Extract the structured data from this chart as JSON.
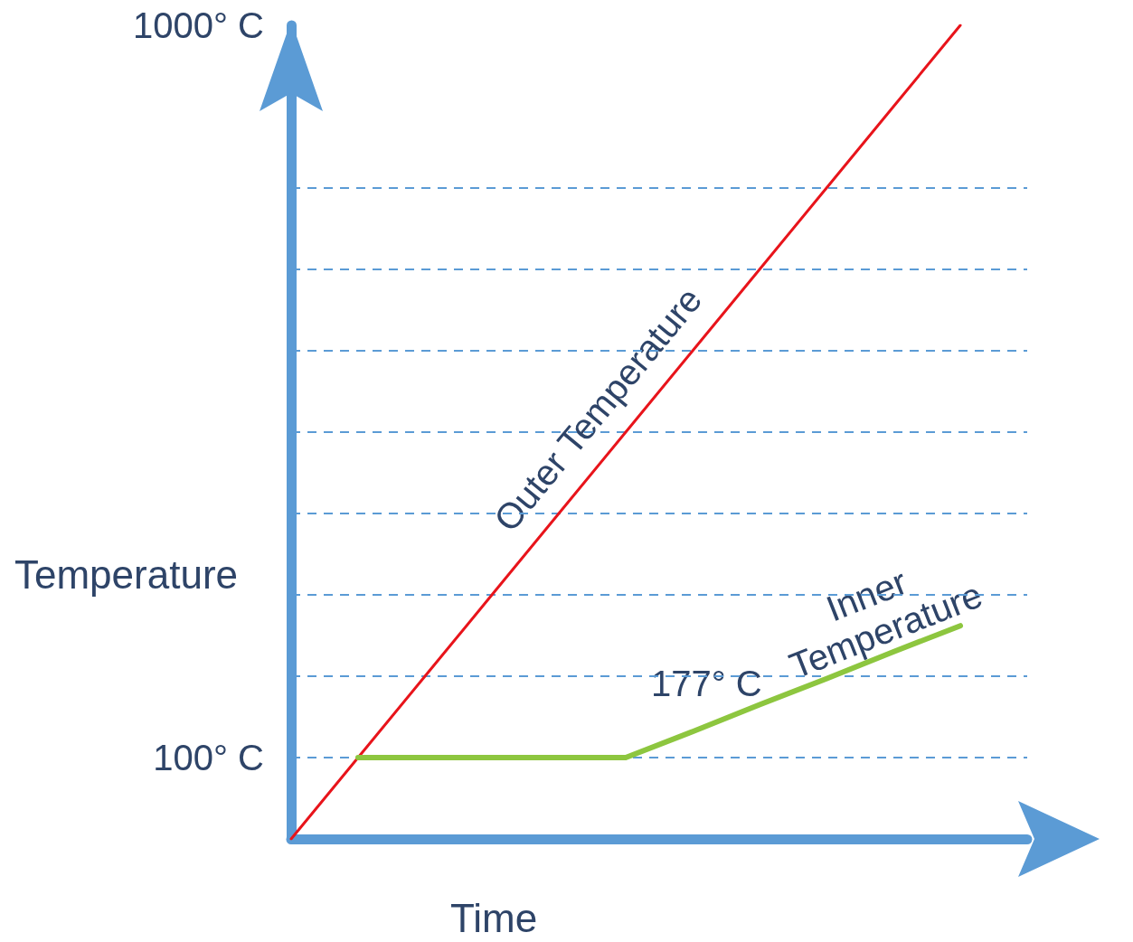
{
  "chart_data": {
    "type": "line",
    "xlabel": "Time",
    "ylabel": "Temperature",
    "categories": [
      null,
      null,
      null,
      null,
      null,
      null,
      null,
      null,
      null,
      null,
      null,
      null
    ],
    "series": [
      {
        "name": "Outer Temperature",
        "color": "#e8141b",
        "values": [
          0,
          100,
          200,
          300,
          400,
          500,
          600,
          700,
          800,
          900,
          1000,
          null
        ]
      },
      {
        "name": "Inner Temperature",
        "color": "#8dc63f",
        "values": [
          null,
          100,
          100,
          100,
          100,
          100,
          132,
          165,
          197,
          230,
          262,
          null
        ]
      }
    ],
    "ylim": [
      0,
      1000
    ],
    "yticks": [
      {
        "value": 100,
        "label": "100° C"
      },
      {
        "value": 200,
        "label": null
      },
      {
        "value": 300,
        "label": null
      },
      {
        "value": 400,
        "label": null
      },
      {
        "value": 500,
        "label": null
      },
      {
        "value": 600,
        "label": null
      },
      {
        "value": 700,
        "label": null
      },
      {
        "value": 800,
        "label": null
      },
      {
        "value": 1000,
        "label": "1000° C"
      }
    ],
    "grid": "y",
    "marker": "none",
    "line_style": "solid",
    "legend": false,
    "annotations": [
      "177° C"
    ]
  }
}
